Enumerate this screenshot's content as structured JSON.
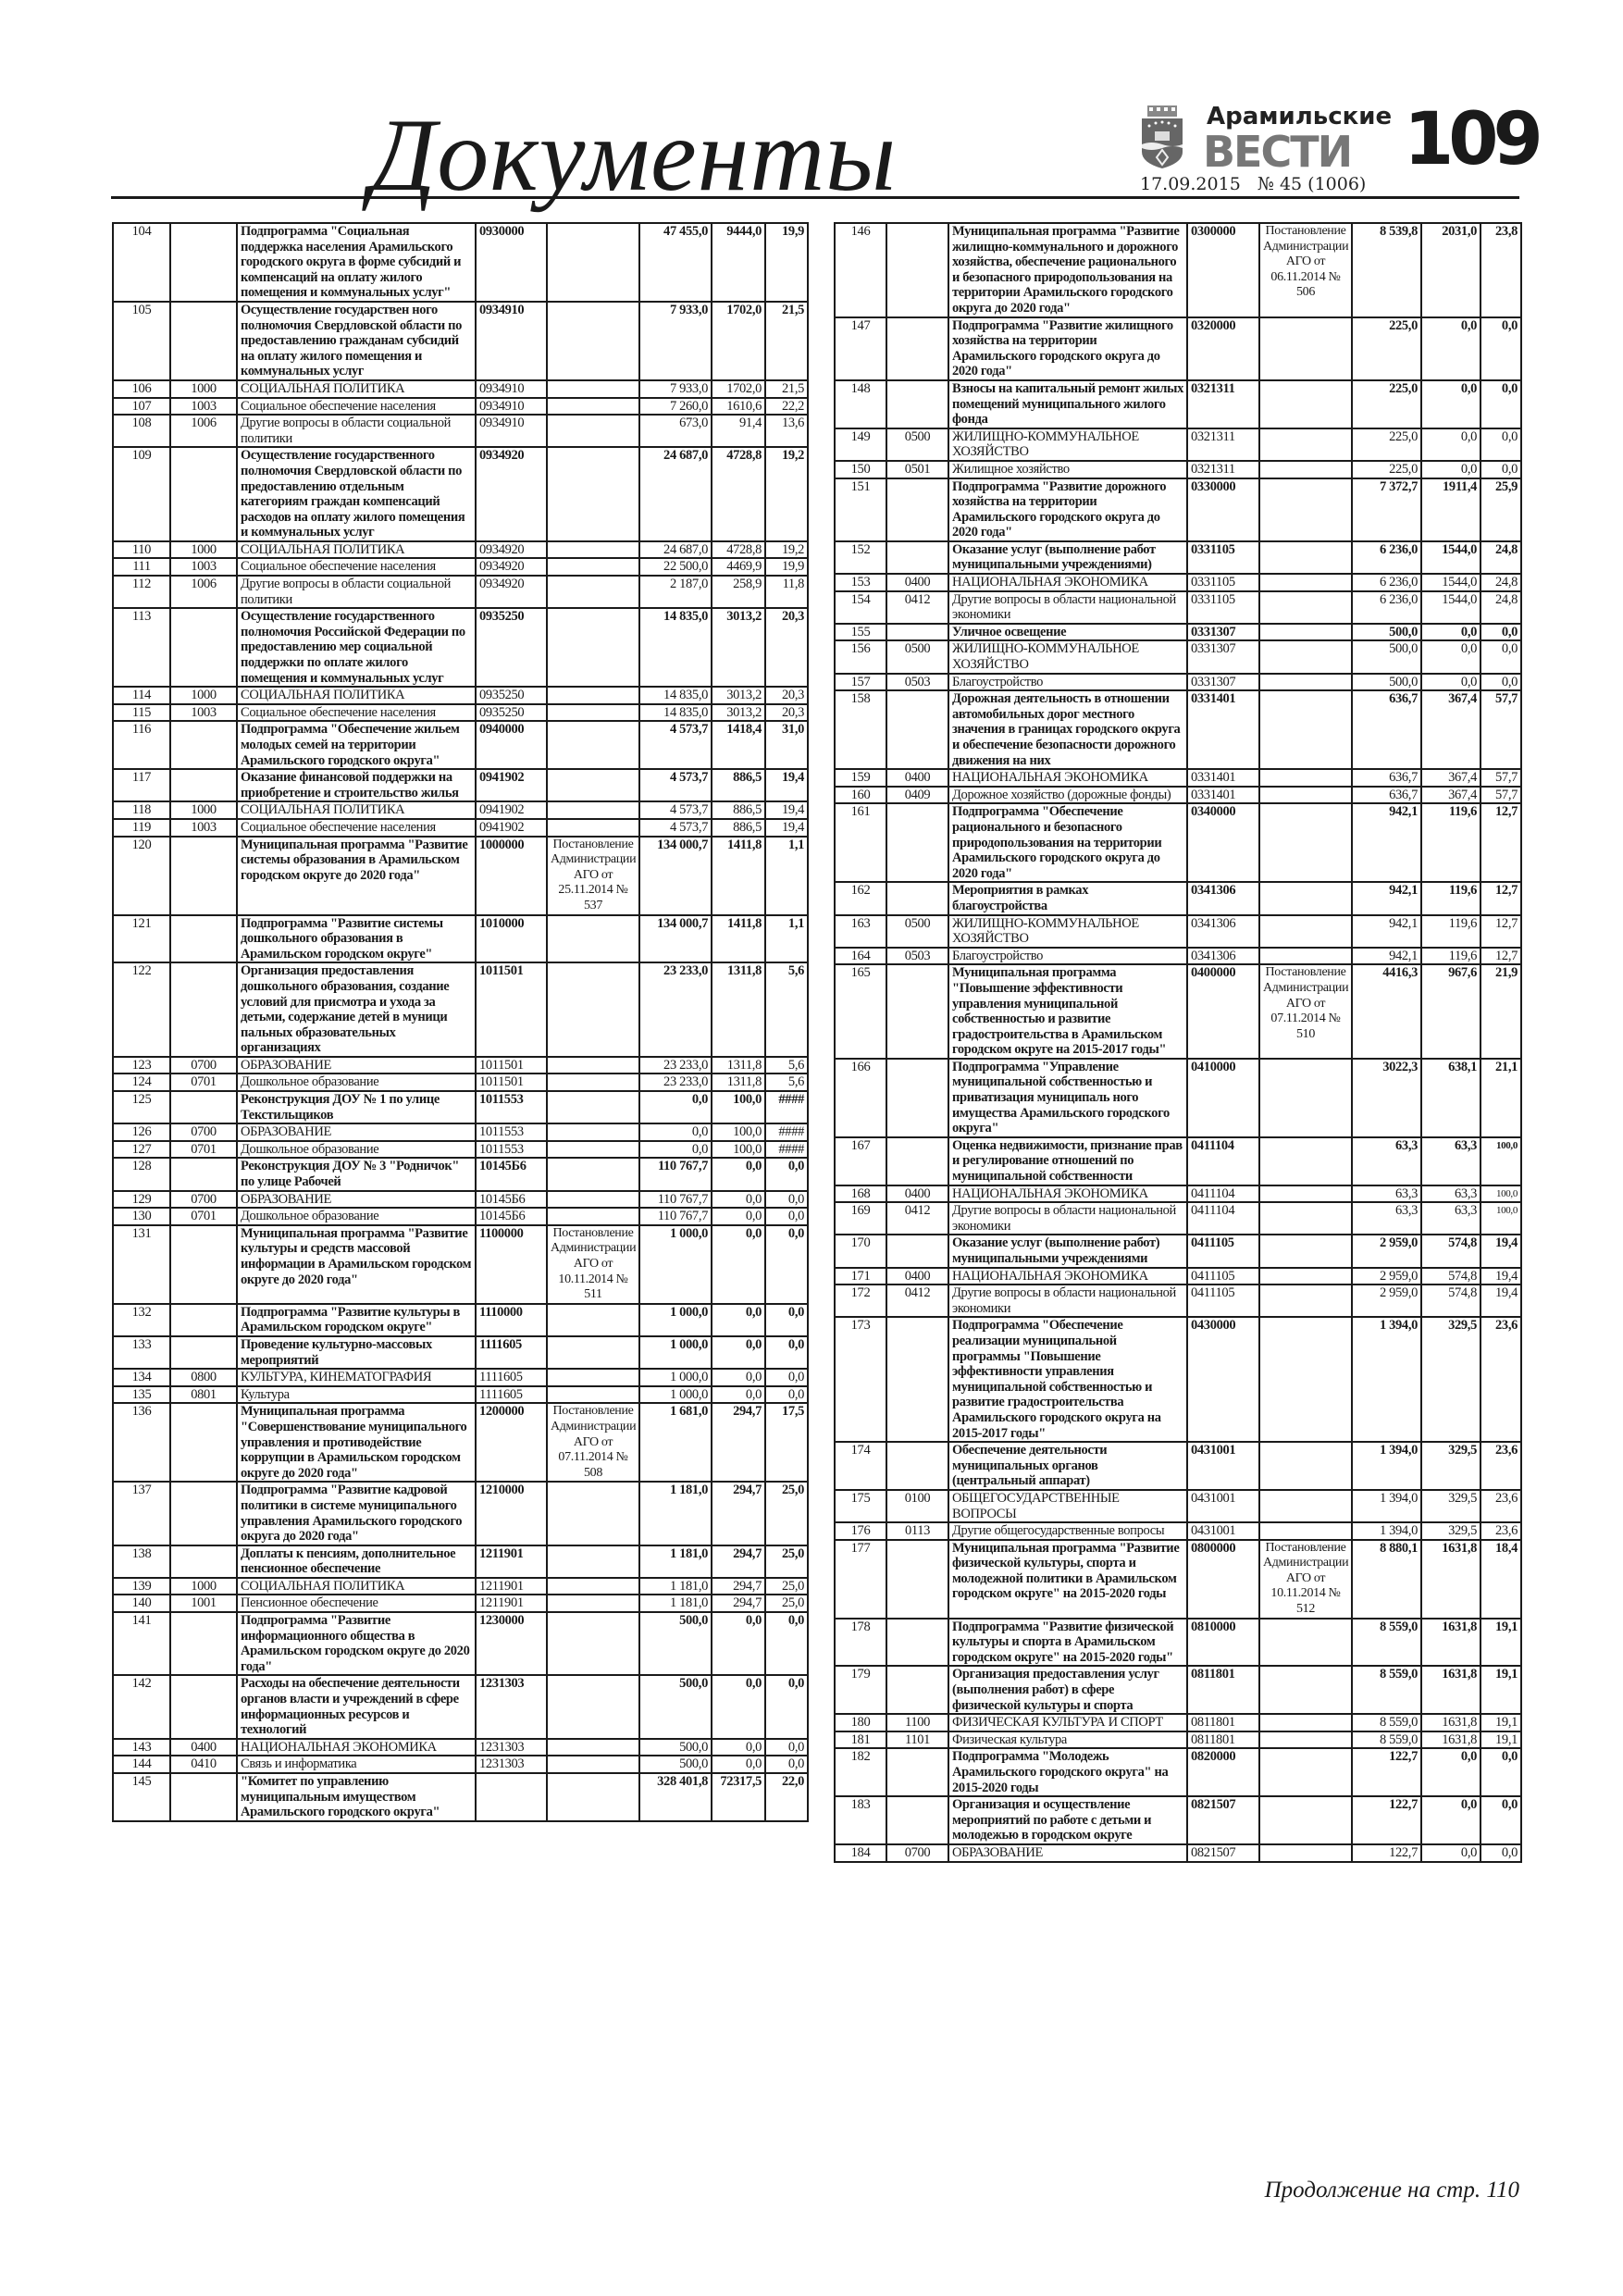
{
  "header": {
    "section_title": "Документы",
    "newspaper_name_line1": "Арамильские",
    "newspaper_name_line2": "ВЕСТИ",
    "page_number": "109",
    "issue_date": "17.09.2015",
    "issue_number": "№ 45 (1006)",
    "logo_icon": "city-coat-of-arms"
  },
  "left_table": [
    [
      "104",
      "",
      "Подпрограмма \"Социальная поддержка населения Арамильского городского округа в форме субсидий и компенсаций на оплату жилого помещения и коммунальных услуг\"",
      "0930000",
      "",
      "47 455,0",
      "9444,0",
      "19,9",
      true
    ],
    [
      "105",
      "",
      "Осуществление государствен ного полномочия Свердловской области по предоставлению гражданам субсидий на оплату жилого помещения и коммунальных услуг",
      "0934910",
      "",
      "7 933,0",
      "1702,0",
      "21,5",
      true
    ],
    [
      "106",
      "1000",
      "СОЦИАЛЬНАЯ ПОЛИТИКА",
      "0934910",
      "",
      "7 933,0",
      "1702,0",
      "21,5",
      false
    ],
    [
      "107",
      "1003",
      "Социальное обеспечение населения",
      "0934910",
      "",
      "7 260,0",
      "1610,6",
      "22,2",
      false
    ],
    [
      "108",
      "1006",
      "Другие вопросы в области социальной политики",
      "0934910",
      "",
      "673,0",
      "91,4",
      "13,6",
      false
    ],
    [
      "109",
      "",
      "Осуществление государственного полномочия Свердловской области по предоставлению отдельным категориям граждан компенсаций расходов на оплату жилого помещения и коммунальных услуг",
      "0934920",
      "",
      "24 687,0",
      "4728,8",
      "19,2",
      true
    ],
    [
      "110",
      "1000",
      "СОЦИАЛЬНАЯ ПОЛИТИКА",
      "0934920",
      "",
      "24 687,0",
      "4728,8",
      "19,2",
      false
    ],
    [
      "111",
      "1003",
      "Социальное обеспечение населения",
      "0934920",
      "",
      "22 500,0",
      "4469,9",
      "19,9",
      false
    ],
    [
      "112",
      "1006",
      "Другие вопросы в области социальной политики",
      "0934920",
      "",
      "2 187,0",
      "258,9",
      "11,8",
      false
    ],
    [
      "113",
      "",
      "Осуществление государственного полномочия Российской Федерации по предоставлению мер социальной поддержки по оплате жилого помещения и коммунальных услуг",
      "0935250",
      "",
      "14 835,0",
      "3013,2",
      "20,3",
      true
    ],
    [
      "114",
      "1000",
      "СОЦИАЛЬНАЯ ПОЛИТИКА",
      "0935250",
      "",
      "14 835,0",
      "3013,2",
      "20,3",
      false
    ],
    [
      "115",
      "1003",
      "Социальное обеспечение населения",
      "0935250",
      "",
      "14 835,0",
      "3013,2",
      "20,3",
      false
    ],
    [
      "116",
      "",
      "Подпрограмма \"Обеспечение жильем молодых семей на территории Арамильского городского округа\"",
      "0940000",
      "",
      "4 573,7",
      "1418,4",
      "31,0",
      true
    ],
    [
      "117",
      "",
      "Оказание финансовой поддержки на приобретение и строительство жилья",
      "0941902",
      "",
      "4 573,7",
      "886,5",
      "19,4",
      true
    ],
    [
      "118",
      "1000",
      "СОЦИАЛЬНАЯ ПОЛИТИКА",
      "0941902",
      "",
      "4 573,7",
      "886,5",
      "19,4",
      false
    ],
    [
      "119",
      "1003",
      "Социальное обеспечение населения",
      "0941902",
      "",
      "4 573,7",
      "886,5",
      "19,4",
      false
    ],
    [
      "120",
      "",
      "Муниципальная программа \"Развитие системы образования в Арамильском городском округе до 2020 года\"",
      "1000000",
      "Постановление Администрации АГО от 25.11.2014 № 537",
      "134 000,7",
      "1411,8",
      "1,1",
      true
    ],
    [
      "121",
      "",
      "Подпрограмма \"Развитие системы дошкольного образования в Арамильском городском округе\"",
      "1010000",
      "",
      "134 000,7",
      "1411,8",
      "1,1",
      true
    ],
    [
      "122",
      "",
      "Организация предоставления дошкольного образования, создание условий для присмотра и ухода за детьми, содержание детей в муници пальных образовательных организациях",
      "1011501",
      "",
      "23 233,0",
      "1311,8",
      "5,6",
      true
    ],
    [
      "123",
      "0700",
      "ОБРАЗОВАНИЕ",
      "1011501",
      "",
      "23 233,0",
      "1311,8",
      "5,6",
      false
    ],
    [
      "124",
      "0701",
      "Дошкольное образование",
      "1011501",
      "",
      "23 233,0",
      "1311,8",
      "5,6",
      false
    ],
    [
      "125",
      "",
      "Реконструкция ДОУ № 1 по улице Текстильщиков",
      "1011553",
      "",
      "0,0",
      "100,0",
      "####",
      true
    ],
    [
      "126",
      "0700",
      "ОБРАЗОВАНИЕ",
      "1011553",
      "",
      "0,0",
      "100,0",
      "####",
      false
    ],
    [
      "127",
      "0701",
      "Дошкольное образование",
      "1011553",
      "",
      "0,0",
      "100,0",
      "####",
      false
    ],
    [
      "128",
      "",
      "Реконструкция ДОУ № 3 \"Родничок\" по улице Рабочей",
      "10145Б6",
      "",
      "110 767,7",
      "0,0",
      "0,0",
      true
    ],
    [
      "129",
      "0700",
      "ОБРАЗОВАНИЕ",
      "10145Б6",
      "",
      "110 767,7",
      "0,0",
      "0,0",
      false
    ],
    [
      "130",
      "0701",
      "Дошкольное образование",
      "10145Б6",
      "",
      "110 767,7",
      "0,0",
      "0,0",
      false
    ],
    [
      "131",
      "",
      "Муниципальная программа \"Развитие культуры и средств массовой информации в Арамильском городском округе до 2020 года\"",
      "1100000",
      "Постановление Администрации АГО от 10.11.2014 № 511",
      "1 000,0",
      "0,0",
      "0,0",
      true
    ],
    [
      "132",
      "",
      "Подпрограмма \"Развитие культуры в Арамильском городском округе\"",
      "1110000",
      "",
      "1 000,0",
      "0,0",
      "0,0",
      true
    ],
    [
      "133",
      "",
      "Проведение культурно-массовых мероприятий",
      "1111605",
      "",
      "1 000,0",
      "0,0",
      "0,0",
      true
    ],
    [
      "134",
      "0800",
      "КУЛЬТУРА, КИНЕМАТОГРАФИЯ",
      "1111605",
      "",
      "1 000,0",
      "0,0",
      "0,0",
      false
    ],
    [
      "135",
      "0801",
      "Культура",
      "1111605",
      "",
      "1 000,0",
      "0,0",
      "0,0",
      false
    ],
    [
      "136",
      "",
      "Муниципальная программа \"Совершенствование муниципального управления и противодействие коррупции в Арамильском городском округе до 2020 года\"",
      "1200000",
      "Постановление Администрации АГО от 07.11.2014 № 508",
      "1 681,0",
      "294,7",
      "17,5",
      true
    ],
    [
      "137",
      "",
      "Подпрограмма \"Развитие кадровой политики в системе муниципального управления Арамильского городского округа до 2020 года\"",
      "1210000",
      "",
      "1 181,0",
      "294,7",
      "25,0",
      true
    ],
    [
      "138",
      "",
      "Доплаты к пенсиям, дополнительное пенсионное обеспечение",
      "1211901",
      "",
      "1 181,0",
      "294,7",
      "25,0",
      true
    ],
    [
      "139",
      "1000",
      "СОЦИАЛЬНАЯ ПОЛИТИКА",
      "1211901",
      "",
      "1 181,0",
      "294,7",
      "25,0",
      false
    ],
    [
      "140",
      "1001",
      "Пенсионное обеспечение",
      "1211901",
      "",
      "1 181,0",
      "294,7",
      "25,0",
      false
    ],
    [
      "141",
      "",
      "Подпрограмма \"Развитие информационного общества в Арамильском городском округе до 2020 года\"",
      "1230000",
      "",
      "500,0",
      "0,0",
      "0,0",
      true
    ],
    [
      "142",
      "",
      "Расходы на обеспечение деятельности органов власти и учреждений в сфере информационных ресурсов и технологий",
      "1231303",
      "",
      "500,0",
      "0,0",
      "0,0",
      true
    ],
    [
      "143",
      "0400",
      "НАЦИОНАЛЬНАЯ ЭКОНОМИКА",
      "1231303",
      "",
      "500,0",
      "0,0",
      "0,0",
      false
    ],
    [
      "144",
      "0410",
      "Связь и информатика",
      "1231303",
      "",
      "500,0",
      "0,0",
      "0,0",
      false
    ],
    [
      "145",
      "",
      "\"Комитет по управлению муниципальным имуществом Арамильского городского округа\"",
      "",
      "",
      "328 401,8",
      "72317,5",
      "22,0",
      true
    ]
  ],
  "right_table": [
    [
      "146",
      "",
      "Муниципальная программа \"Развитие жилищно-коммунального и дорожного хозяйства, обеспечение рационального и безопасного природопользования на территории Арамильского городского округа до 2020 года\"",
      "0300000",
      "Постановление Администрации АГО от 06.11.2014 № 506",
      "8 539,8",
      "2031,0",
      "23,8",
      true
    ],
    [
      "147",
      "",
      "Подпрограмма \"Развитие жилищного хозяйства на территории Арамильского городского округа до 2020 года\"",
      "0320000",
      "",
      "225,0",
      "0,0",
      "0,0",
      true
    ],
    [
      "148",
      "",
      "Взносы на капитальный ремонт жилых помещений муниципального жилого фонда",
      "0321311",
      "",
      "225,0",
      "0,0",
      "0,0",
      true
    ],
    [
      "149",
      "0500",
      "ЖИЛИЩНО-КОММУНАЛЬНОЕ ХОЗЯЙСТВО",
      "0321311",
      "",
      "225,0",
      "0,0",
      "0,0",
      false
    ],
    [
      "150",
      "0501",
      "Жилищное хозяйство",
      "0321311",
      "",
      "225,0",
      "0,0",
      "0,0",
      false
    ],
    [
      "151",
      "",
      "Подпрограмма \"Развитие дорожного хозяйства на территории Арамильского городского округа до 2020 года\"",
      "0330000",
      "",
      "7 372,7",
      "1911,4",
      "25,9",
      true
    ],
    [
      "152",
      "",
      "Оказание услуг (выполнение работ муниципальными учреждениями)",
      "0331105",
      "",
      "6 236,0",
      "1544,0",
      "24,8",
      true
    ],
    [
      "153",
      "0400",
      "НАЦИОНАЛЬНАЯ ЭКОНОМИКА",
      "0331105",
      "",
      "6 236,0",
      "1544,0",
      "24,8",
      false
    ],
    [
      "154",
      "0412",
      "Другие вопросы в области национальной экономики",
      "0331105",
      "",
      "6 236,0",
      "1544,0",
      "24,8",
      false
    ],
    [
      "155",
      "",
      "Уличное освещение",
      "0331307",
      "",
      "500,0",
      "0,0",
      "0,0",
      true
    ],
    [
      "156",
      "0500",
      "ЖИЛИЩНО-КОММУНАЛЬНОЕ ХОЗЯЙСТВО",
      "0331307",
      "",
      "500,0",
      "0,0",
      "0,0",
      false
    ],
    [
      "157",
      "0503",
      "Благоустройство",
      "0331307",
      "",
      "500,0",
      "0,0",
      "0,0",
      false
    ],
    [
      "158",
      "",
      "Дорожная деятельность в отношении автомобильных дорог местного значения в границах городского округа и обеспечение безопасности дорожного движения на них",
      "0331401",
      "",
      "636,7",
      "367,4",
      "57,7",
      true
    ],
    [
      "159",
      "0400",
      "НАЦИОНАЛЬНАЯ ЭКОНОМИКА",
      "0331401",
      "",
      "636,7",
      "367,4",
      "57,7",
      false
    ],
    [
      "160",
      "0409",
      "Дорожное хозяйство (дорожные фонды)",
      "0331401",
      "",
      "636,7",
      "367,4",
      "57,7",
      false
    ],
    [
      "161",
      "",
      "Подпрограмма \"Обеспечение рационального и безопасного природопользования на территории Арамильского городского округа до 2020 года\"",
      "0340000",
      "",
      "942,1",
      "119,6",
      "12,7",
      true
    ],
    [
      "162",
      "",
      "Мероприятия в рамках благоустройства",
      "0341306",
      "",
      "942,1",
      "119,6",
      "12,7",
      true
    ],
    [
      "163",
      "0500",
      "ЖИЛИЩНО-КОММУНАЛЬНОЕ ХОЗЯЙСТВО",
      "0341306",
      "",
      "942,1",
      "119,6",
      "12,7",
      false
    ],
    [
      "164",
      "0503",
      "Благоустройство",
      "0341306",
      "",
      "942,1",
      "119,6",
      "12,7",
      false
    ],
    [
      "165",
      "",
      "Муниципальная программа \"Повышение эффективности управления муниципальной собственностью и развитие градостроительства в Арамильском городском округе на 2015-2017 годы\"",
      "0400000",
      "Постановление Администрации АГО от 07.11.2014 № 510",
      "4416,3",
      "967,6",
      "21,9",
      true
    ],
    [
      "166",
      "",
      "Подпрограмма \"Управление муниципальной собственностью и приватизация муниципаль ного имущества Арамильского городского округа\"",
      "0410000",
      "",
      "3022,3",
      "638,1",
      "21,1",
      true
    ],
    [
      "167",
      "",
      "Оценка недвижимости, признание прав и регулирование отношений по муниципальной собственности",
      "0411104",
      "",
      "63,3",
      "63,3",
      "100,0",
      true
    ],
    [
      "168",
      "0400",
      "НАЦИОНАЛЬНАЯ ЭКОНОМИКА",
      "0411104",
      "",
      "63,3",
      "63,3",
      "100,0",
      false
    ],
    [
      "169",
      "0412",
      "Другие вопросы в области национальной экономики",
      "0411104",
      "",
      "63,3",
      "63,3",
      "100,0",
      false
    ],
    [
      "170",
      "",
      "Оказание услуг (выполнение работ) муниципальными учреждениями",
      "0411105",
      "",
      "2 959,0",
      "574,8",
      "19,4",
      true
    ],
    [
      "171",
      "0400",
      "НАЦИОНАЛЬНАЯ ЭКОНОМИКА",
      "0411105",
      "",
      "2 959,0",
      "574,8",
      "19,4",
      false
    ],
    [
      "172",
      "0412",
      "Другие вопросы в области национальной экономики",
      "0411105",
      "",
      "2 959,0",
      "574,8",
      "19,4",
      false
    ],
    [
      "173",
      "",
      "Подпрограмма \"Обеспечение реализации муниципальной программы \"Повышение эффективности управления муниципальной собственностью и развитие градостроительства Арамильского городского округа на 2015-2017 годы\"",
      "0430000",
      "",
      "1 394,0",
      "329,5",
      "23,6",
      true
    ],
    [
      "174",
      "",
      "Обеспечение деятельности муниципальных органов (центральный аппарат)",
      "0431001",
      "",
      "1 394,0",
      "329,5",
      "23,6",
      true
    ],
    [
      "175",
      "0100",
      "ОБЩЕГОСУДАРСТВЕННЫЕ ВОПРОСЫ",
      "0431001",
      "",
      "1 394,0",
      "329,5",
      "23,6",
      false
    ],
    [
      "176",
      "0113",
      "Другие общегосударственные вопросы",
      "0431001",
      "",
      "1 394,0",
      "329,5",
      "23,6",
      false
    ],
    [
      "177",
      "",
      "Муниципальная программа \"Развитие физической культуры, спорта и молодежной политики в Арамильском городском округе\" на 2015-2020 годы",
      "0800000",
      "Постановление Администрации АГО от 10.11.2014 № 512",
      "8 880,1",
      "1631,8",
      "18,4",
      true
    ],
    [
      "178",
      "",
      "Подпрограмма \"Развитие физической культуры и спорта в Арамильском городском округе\" на 2015-2020 годы\"",
      "0810000",
      "",
      "8 559,0",
      "1631,8",
      "19,1",
      true
    ],
    [
      "179",
      "",
      "Организация предоставления услуг (выполнения работ) в сфере физической культуры и спорта",
      "0811801",
      "",
      "8 559,0",
      "1631,8",
      "19,1",
      true
    ],
    [
      "180",
      "1100",
      "ФИЗИЧЕСКАЯ КУЛЬТУРА И СПОРТ",
      "0811801",
      "",
      "8 559,0",
      "1631,8",
      "19,1",
      false
    ],
    [
      "181",
      "1101",
      "Физическая культура",
      "0811801",
      "",
      "8 559,0",
      "1631,8",
      "19,1",
      false
    ],
    [
      "182",
      "",
      "Подпрограмма \"Молодежь Арамильского городского округа\" на 2015-2020 годы",
      "0820000",
      "",
      "122,7",
      "0,0",
      "0,0",
      true
    ],
    [
      "183",
      "",
      "Организация и осуществление мероприятий по работе с детьми и молодежью в городском округе",
      "0821507",
      "",
      "122,7",
      "0,0",
      "0,0",
      true
    ],
    [
      "184",
      "0700",
      "ОБРАЗОВАНИЕ",
      "0821507",
      "",
      "122,7",
      "0,0",
      "0,0",
      false
    ]
  ],
  "footer": {
    "continuation": "Продолжение на стр. 110"
  }
}
